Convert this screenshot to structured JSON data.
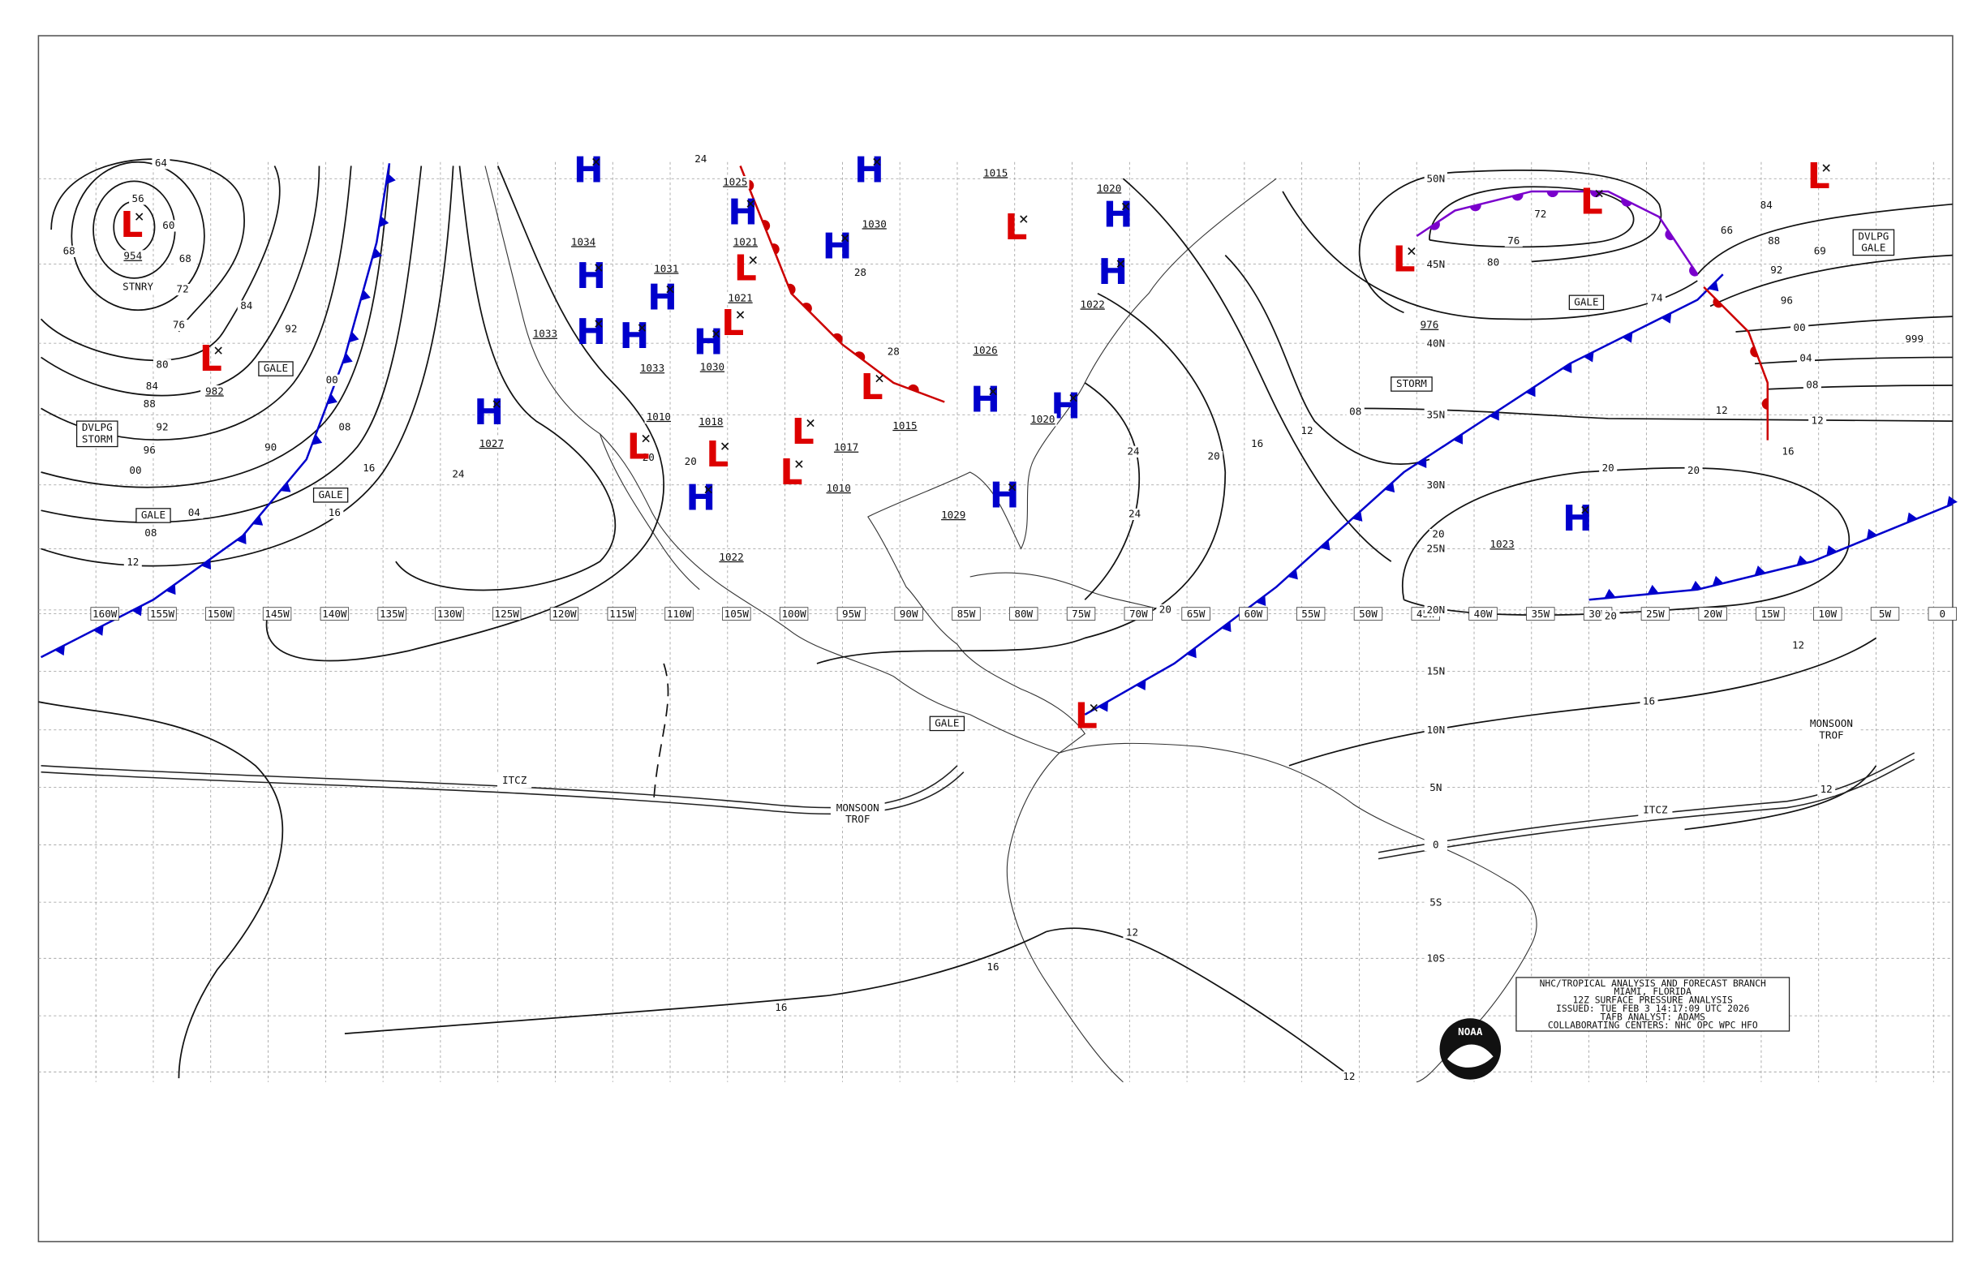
{
  "map": {
    "longitude_labels": [
      "160W",
      "155W",
      "150W",
      "145W",
      "140W",
      "135W",
      "130W",
      "125W",
      "120W",
      "115W",
      "110W",
      "105W",
      "100W",
      "95W",
      "90W",
      "85W",
      "80W",
      "75W",
      "70W",
      "65W",
      "60W",
      "55W",
      "50W",
      "45W",
      "40W",
      "35W",
      "30W",
      "25W",
      "20W",
      "15W",
      "10W",
      "5W",
      "0"
    ],
    "latitude_labels": [
      "50N",
      "45N",
      "40N",
      "35N",
      "30N",
      "25N",
      "20N",
      "15N",
      "10N",
      "5N",
      "0",
      "5S",
      "10S"
    ],
    "pressure_centers": [
      {
        "symbol": "L",
        "pressure": "954"
      },
      {
        "symbol": "L",
        "pressure": "982"
      },
      {
        "symbol": "H",
        "pressure": "1027"
      },
      {
        "symbol": "H",
        "pressure": "1034"
      },
      {
        "symbol": "H",
        "pressure": "1033"
      },
      {
        "symbol": "H",
        "pressure": "1031"
      },
      {
        "symbol": "H",
        "pressure": "1033"
      },
      {
        "symbol": "H",
        "pressure": "1030"
      },
      {
        "symbol": "H",
        "pressure": "1022"
      },
      {
        "symbol": "H",
        "pressure": "1021"
      },
      {
        "symbol": "H",
        "pressure": "1030"
      },
      {
        "symbol": "H",
        "pressure": "1020"
      },
      {
        "symbol": "H",
        "pressure": "1022"
      },
      {
        "symbol": "H",
        "pressure": "1026"
      },
      {
        "symbol": "H",
        "pressure": "1020"
      },
      {
        "symbol": "H",
        "pressure": "1029"
      },
      {
        "symbol": "H",
        "pressure": "1023"
      },
      {
        "symbol": "L",
        "pressure": "1021"
      },
      {
        "symbol": "L"
      },
      {
        "symbol": "L"
      },
      {
        "symbol": "L",
        "pressure": "1015"
      },
      {
        "symbol": "L",
        "pressure": "1017"
      },
      {
        "symbol": "L",
        "pressure": "1018"
      },
      {
        "symbol": "L",
        "pressure": "1010"
      },
      {
        "symbol": "L",
        "pressure": "1010"
      },
      {
        "symbol": "L",
        "pressure": "976"
      },
      {
        "symbol": "L"
      },
      {
        "symbol": "L"
      },
      {
        "symbol": "L"
      },
      {
        "symbol": "H",
        "pressure": "1015"
      },
      {
        "symbol": "H",
        "pressure": "1025"
      }
    ],
    "isobar_labels": [
      "64",
      "56",
      "60",
      "68",
      "68",
      "72",
      "76",
      "80",
      "84",
      "88",
      "92",
      "96",
      "00",
      "04",
      "08",
      "12",
      "84",
      "92",
      "00",
      "08",
      "16",
      "16",
      "24",
      "24",
      "24",
      "20",
      "16",
      "12",
      "08",
      "20",
      "20",
      "20",
      "20",
      "20",
      "16",
      "12",
      "12",
      "12",
      "16",
      "16",
      "12",
      "72",
      "76",
      "80",
      "74",
      "66",
      "84",
      "88",
      "92",
      "96",
      "00",
      "04",
      "08",
      "12",
      "12",
      "16",
      "69",
      "999",
      "90",
      "20",
      "20",
      "28",
      "28",
      "24"
    ],
    "feature_labels": [
      {
        "lines": [
          "STNRY"
        ],
        "boxed": false
      },
      {
        "lines": [
          "GALE"
        ],
        "boxed": true
      },
      {
        "lines": [
          "GALE"
        ],
        "boxed": true
      },
      {
        "lines": [
          "GALE"
        ],
        "boxed": true
      },
      {
        "lines": [
          "DVLPG",
          "STORM"
        ],
        "boxed": true
      },
      {
        "lines": [
          "STORM"
        ],
        "boxed": true
      },
      {
        "lines": [
          "GALE"
        ],
        "boxed": true
      },
      {
        "lines": [
          "DVLPG",
          "GALE"
        ],
        "boxed": true
      },
      {
        "lines": [
          "GALE"
        ],
        "boxed": true
      },
      {
        "lines": [
          "ITCZ"
        ],
        "boxed": false
      },
      {
        "lines": [
          "ITCZ"
        ],
        "boxed": false
      },
      {
        "lines": [
          "MONSOON",
          "TROF"
        ],
        "boxed": false
      },
      {
        "lines": [
          "MONSOON",
          "TROF"
        ],
        "boxed": false
      }
    ],
    "logo": "NOAA"
  },
  "title_block": {
    "lines": [
      "NHC/TROPICAL ANALYSIS AND FORECAST BRANCH",
      "MIAMI, FLORIDA",
      "12Z SURFACE PRESSURE ANALYSIS",
      "ISSUED: TUE FEB 3 14:17:09 UTC 2026",
      "TAFB ANALYST: ADAMS",
      "COLLABORATING CENTERS: NHC OPC WPC HFO"
    ]
  }
}
